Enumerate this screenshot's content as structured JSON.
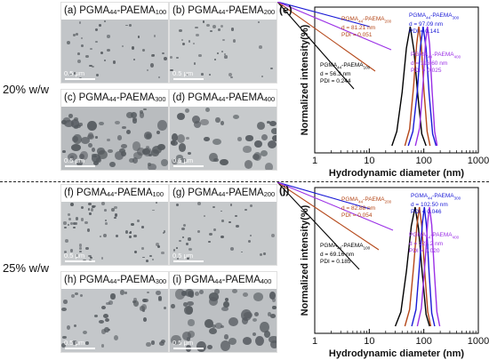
{
  "row_labels": [
    "20% w/w",
    "25% w/w"
  ],
  "tiles": [
    {
      "label": "(a) PGMA",
      "a": "44",
      "mid": "-PAEMA",
      "b": "100",
      "scale": "0.5 μm"
    },
    {
      "label": "(b) PGMA",
      "a": "44",
      "mid": "-PAEMA",
      "b": "200",
      "scale": "0.5 μm"
    },
    {
      "label": "(c) PGMA",
      "a": "44",
      "mid": "-PAEMA",
      "b": "300",
      "scale": "0.5 μm"
    },
    {
      "label": "(d) PGMA",
      "a": "44",
      "mid": "-PAEMA",
      "b": "400",
      "scale": "0.5 μm"
    },
    {
      "label": "(f) PGMA",
      "a": "44",
      "mid": "-PAEMA",
      "b": "100",
      "scale": "0.5 μm"
    },
    {
      "label": "(g) PGMA",
      "a": "44",
      "mid": "-PAEMA",
      "b": "200",
      "scale": "0.5 μm"
    },
    {
      "label": "(h) PGMA",
      "a": "44",
      "mid": "-PAEMA",
      "b": "300",
      "scale": "0.5 μm"
    },
    {
      "label": "(i) PGMA",
      "a": "44",
      "mid": "-PAEMA",
      "b": "400",
      "scale": "0.5 μm"
    }
  ],
  "chart_data": [
    {
      "panel": "e",
      "type": "line",
      "xlabel": "Hydrodynamic diameter (nm)",
      "ylabel": "Normalized intensity(%)",
      "xscale": "log",
      "xlim": [
        1,
        1000
      ],
      "xticks": [
        "1",
        "10",
        "100",
        "1000"
      ],
      "series": [
        {
          "name": "PGMA44-PAEMA100",
          "color": "#000000",
          "d": "d = 56.3 nm",
          "pdi": "PDI = 0.244",
          "x": [
            26,
            32,
            40,
            48,
            56.3,
            66,
            78,
            92,
            110
          ],
          "y": [
            0,
            12,
            45,
            82,
            100,
            80,
            42,
            10,
            0
          ]
        },
        {
          "name": "PGMA44-PAEMA200",
          "color": "#b5481a",
          "d": "d = 81.21 nm",
          "pdi": "PDI = 0.051",
          "x": [
            45,
            55,
            65,
            74,
            81.2,
            90,
            101,
            115,
            130
          ],
          "y": [
            0,
            14,
            50,
            85,
            100,
            84,
            46,
            12,
            0
          ]
        },
        {
          "name": "PGMA44-PAEMA300",
          "color": "#1a1ad6",
          "d": "d = 97.09 nm",
          "pdi": "PDI = 0.141",
          "x": [
            52,
            63,
            76,
            87,
            97.1,
            110,
            125,
            145,
            168
          ],
          "y": [
            0,
            12,
            46,
            84,
            100,
            82,
            44,
            10,
            0
          ]
        },
        {
          "name": "PGMA44-PAEMA400",
          "color": "#9b30e6",
          "d": "d = 116.60 nm",
          "pdi": "PDI = 0.025",
          "x": [
            70,
            84,
            98,
            108,
            116.6,
            128,
            142,
            158,
            176
          ],
          "y": [
            0,
            15,
            55,
            88,
            100,
            85,
            46,
            12,
            0
          ]
        }
      ]
    },
    {
      "panel": "j",
      "type": "line",
      "xlabel": "Hydrodynamic diameter (nm)",
      "ylabel": "Normalized intensity(%)",
      "xscale": "log",
      "xlim": [
        1,
        1000
      ],
      "xticks": [
        "1",
        "10",
        "100",
        "1000"
      ],
      "series": [
        {
          "name": "PGMA44-PAEMA100",
          "color": "#000000",
          "d": "d = 69.16 nm",
          "pdi": "PDI = 0.185",
          "x": [
            30,
            38,
            48,
            59,
            69.2,
            80,
            94,
            110,
            128
          ],
          "y": [
            0,
            12,
            46,
            84,
            100,
            82,
            44,
            10,
            0
          ]
        },
        {
          "name": "PGMA44-PAEMA200",
          "color": "#b5481a",
          "d": "d = 82.88 nm",
          "pdi": "PDI = 0.054",
          "x": [
            45,
            55,
            65,
            75,
            82.9,
            92,
            104,
            118,
            134
          ],
          "y": [
            0,
            14,
            50,
            85,
            100,
            84,
            46,
            12,
            0
          ]
        },
        {
          "name": "PGMA44-PAEMA300",
          "color": "#1a1ad6",
          "d": "d = 102.50 nm",
          "pdi": "PDI = 0.046",
          "x": [
            60,
            72,
            83,
            94,
            102.5,
            112,
            125,
            140,
            158
          ],
          "y": [
            0,
            14,
            50,
            86,
            100,
            84,
            45,
            11,
            0
          ]
        },
        {
          "name": "PGMA44-PAEMA400",
          "color": "#9b30e6",
          "d": "d = 127.2 nm",
          "pdi": "PDI = 0.020",
          "x": [
            76,
            90,
            106,
            118,
            127.2,
            140,
            156,
            174,
            196
          ],
          "y": [
            0,
            15,
            55,
            88,
            100,
            85,
            46,
            12,
            0
          ]
        }
      ]
    }
  ]
}
